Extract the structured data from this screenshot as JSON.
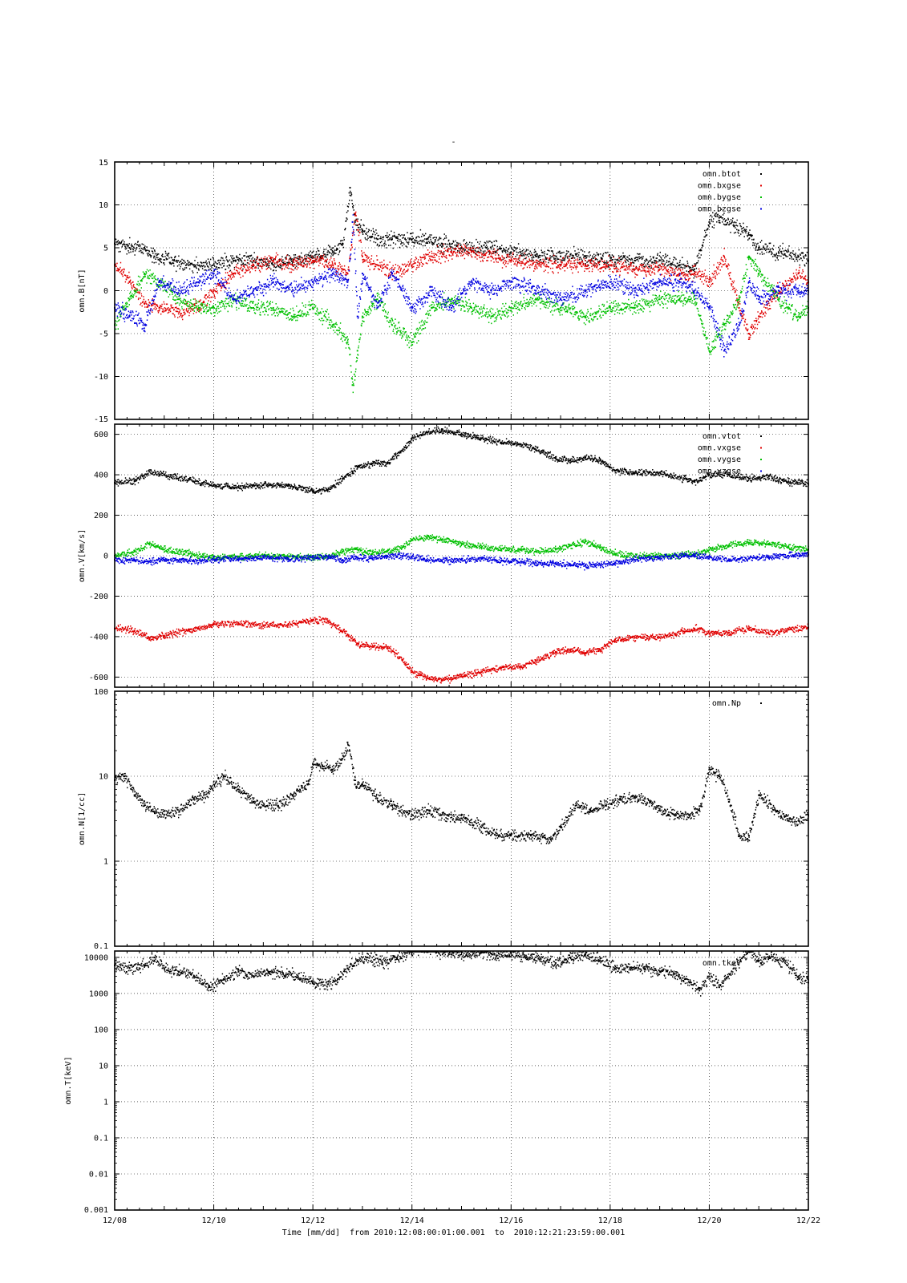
{
  "figure": {
    "title": "-",
    "xlabel": "Time [mm/dd]  from 2010:12:08:00:01:00.001  to  2010:12:21:23:59:00.001",
    "x_tick_labels": [
      "12/08",
      "12/10",
      "12/12",
      "12/14",
      "12/16",
      "12/18",
      "12/20",
      "12/22"
    ]
  },
  "chart_data": [
    {
      "type": "scatter",
      "ylabel": "omn.B[nT]",
      "ylim": [
        -15,
        15
      ],
      "yscale": "linear",
      "y_ticks": [
        -15,
        -10,
        -5,
        0,
        5,
        10,
        15
      ],
      "y_tick_labels": [
        "-15",
        "-10",
        "-5",
        "0",
        "5",
        "10",
        "15"
      ],
      "grid": true,
      "legend": "top-right",
      "x_unit": "day of December 2010",
      "xlim": [
        8,
        22
      ],
      "series": [
        {
          "name": "omn.btot",
          "color": "#000000",
          "x": [
            8.0,
            8.3,
            8.6,
            8.8,
            9.2,
            9.6,
            10.0,
            10.4,
            10.8,
            11.2,
            11.6,
            12.0,
            12.4,
            12.6,
            12.75,
            12.85,
            13.0,
            13.3,
            13.6,
            14.0,
            14.3,
            14.6,
            15.0,
            15.5,
            16.0,
            16.5,
            17.0,
            17.5,
            18.0,
            18.5,
            19.0,
            19.4,
            19.7,
            20.0,
            20.2,
            20.5,
            20.8,
            21.0,
            21.4,
            21.8,
            22.0
          ],
          "y": [
            5.5,
            5,
            5,
            4,
            3.5,
            3,
            3,
            3.5,
            3.5,
            3,
            3.5,
            4,
            4.5,
            5.5,
            12,
            8,
            7,
            6,
            6,
            6,
            6,
            5.5,
            5,
            5,
            4.5,
            4,
            4,
            4,
            3.5,
            3.5,
            3.5,
            3,
            2.5,
            8,
            8.5,
            7.5,
            6.5,
            5,
            4.5,
            4,
            3.5
          ]
        },
        {
          "name": "omn.bxgse",
          "color": "#e00000",
          "x": [
            8.0,
            8.3,
            8.6,
            8.9,
            9.3,
            9.7,
            10.0,
            10.4,
            10.8,
            11.2,
            11.6,
            12.0,
            12.4,
            12.7,
            12.85,
            13.0,
            13.3,
            13.6,
            14.0,
            14.4,
            14.8,
            15.2,
            15.6,
            16.0,
            16.5,
            17.0,
            17.5,
            18.0,
            18.5,
            19.0,
            19.4,
            19.7,
            20.0,
            20.3,
            20.6,
            20.8,
            21.0,
            21.4,
            21.8,
            22.0
          ],
          "y": [
            3,
            1,
            -1.5,
            -2,
            -2.5,
            -2,
            0,
            2,
            3,
            3.5,
            3,
            3.5,
            3,
            2,
            9,
            4,
            3,
            2,
            3,
            4,
            4.5,
            4.5,
            4,
            3.5,
            3,
            3,
            3,
            3,
            2.5,
            2.5,
            2,
            2,
            1,
            4,
            -2,
            -5,
            -3,
            0,
            2,
            1
          ]
        },
        {
          "name": "omn.bygse",
          "color": "#00c000",
          "x": [
            8.0,
            8.3,
            8.6,
            8.9,
            9.3,
            9.7,
            10.0,
            10.4,
            10.8,
            11.2,
            11.6,
            12.0,
            12.4,
            12.7,
            12.8,
            12.9,
            13.0,
            13.3,
            13.6,
            14.0,
            14.4,
            14.8,
            15.2,
            15.6,
            16.0,
            16.5,
            17.0,
            17.5,
            18.0,
            18.5,
            19.0,
            19.4,
            19.7,
            20.0,
            20.3,
            20.6,
            20.8,
            21.0,
            21.4,
            21.8,
            22.0
          ],
          "y": [
            -4,
            -1,
            2,
            1,
            -1,
            -2,
            -2,
            -1,
            -2,
            -2,
            -3,
            -2,
            -4,
            -6,
            -11,
            -7,
            -3,
            -1,
            -4,
            -6,
            -2,
            -1,
            -2,
            -3,
            -2,
            -1,
            -2,
            -3,
            -2,
            -2,
            -1,
            -1,
            -1,
            -7,
            -4,
            -1,
            4,
            2,
            -1,
            -3,
            -2
          ]
        },
        {
          "name": "omn.bzgse",
          "color": "#0000e0",
          "x": [
            8.0,
            8.3,
            8.6,
            8.9,
            9.3,
            9.7,
            10.0,
            10.4,
            10.8,
            11.2,
            11.6,
            12.0,
            12.4,
            12.7,
            12.8,
            12.9,
            13.0,
            13.3,
            13.6,
            14.0,
            14.4,
            14.8,
            15.2,
            15.6,
            16.0,
            16.5,
            17.0,
            17.5,
            18.0,
            18.5,
            19.0,
            19.4,
            19.7,
            20.0,
            20.3,
            20.6,
            20.8,
            21.0,
            21.4,
            21.8,
            22.0
          ],
          "y": [
            -2,
            -3,
            -4,
            1,
            0,
            1,
            2,
            -1,
            0,
            1,
            0,
            1,
            2,
            1,
            8,
            -3,
            2,
            -2,
            2,
            -2,
            0,
            -2,
            1,
            0,
            1,
            0,
            -1,
            0,
            1,
            0,
            1,
            1,
            0,
            -2,
            -7,
            -4,
            1,
            -1,
            0,
            0,
            0
          ]
        }
      ]
    },
    {
      "type": "scatter",
      "ylabel": "omn.V[km/s]",
      "ylim": [
        -650,
        650
      ],
      "yscale": "linear",
      "y_ticks": [
        -600,
        -400,
        -200,
        0,
        200,
        400,
        600
      ],
      "y_tick_labels": [
        "-600",
        "-400",
        "-200",
        "0",
        "200",
        "400",
        "600"
      ],
      "grid": true,
      "legend": "top-right",
      "x_unit": "day of December 2010",
      "xlim": [
        8,
        22
      ],
      "series": [
        {
          "name": "omn.vtot",
          "color": "#000000",
          "x": [
            8.0,
            8.4,
            8.7,
            9.0,
            9.5,
            10.0,
            10.5,
            11.0,
            11.5,
            12.0,
            12.3,
            12.6,
            12.9,
            13.2,
            13.5,
            13.8,
            14.0,
            14.3,
            14.6,
            15.0,
            15.4,
            15.8,
            16.2,
            16.5,
            16.9,
            17.2,
            17.5,
            17.8,
            18.1,
            18.5,
            19.0,
            19.5,
            19.7,
            20.0,
            20.4,
            20.8,
            21.2,
            21.6,
            22.0
          ],
          "y": [
            360,
            370,
            415,
            400,
            375,
            345,
            340,
            350,
            345,
            320,
            325,
            380,
            440,
            455,
            455,
            520,
            580,
            610,
            620,
            600,
            580,
            560,
            550,
            525,
            480,
            470,
            485,
            470,
            420,
            410,
            410,
            380,
            365,
            400,
            400,
            380,
            390,
            365,
            355
          ]
        },
        {
          "name": "omn.vxgse",
          "color": "#e00000",
          "x": [
            8.0,
            8.4,
            8.7,
            9.0,
            9.5,
            10.0,
            10.5,
            11.0,
            11.5,
            12.0,
            12.3,
            12.6,
            12.9,
            13.2,
            13.5,
            13.8,
            14.0,
            14.3,
            14.6,
            15.0,
            15.4,
            15.8,
            16.2,
            16.5,
            16.9,
            17.2,
            17.5,
            17.8,
            18.1,
            18.5,
            19.0,
            19.5,
            19.7,
            20.0,
            20.4,
            20.8,
            21.2,
            21.6,
            22.0
          ],
          "y": [
            -360,
            -370,
            -410,
            -395,
            -370,
            -340,
            -335,
            -345,
            -340,
            -318,
            -322,
            -375,
            -435,
            -450,
            -455,
            -515,
            -575,
            -605,
            -615,
            -595,
            -575,
            -555,
            -545,
            -520,
            -475,
            -465,
            -480,
            -465,
            -415,
            -405,
            -405,
            -375,
            -360,
            -385,
            -380,
            -360,
            -385,
            -365,
            -355
          ]
        },
        {
          "name": "omn.vygse",
          "color": "#00c000",
          "x": [
            8.0,
            8.4,
            8.7,
            9.0,
            9.5,
            10.0,
            10.5,
            11.0,
            11.5,
            12.0,
            12.3,
            12.6,
            12.9,
            13.2,
            13.5,
            13.8,
            14.0,
            14.3,
            14.6,
            15.0,
            15.4,
            15.8,
            16.2,
            16.5,
            16.9,
            17.2,
            17.5,
            17.8,
            18.1,
            18.5,
            19.0,
            19.5,
            19.7,
            20.0,
            20.4,
            20.8,
            21.2,
            21.6,
            22.0
          ],
          "y": [
            0,
            20,
            60,
            30,
            10,
            -10,
            -5,
            0,
            -5,
            -10,
            -5,
            20,
            30,
            10,
            20,
            40,
            80,
            90,
            80,
            60,
            40,
            30,
            30,
            20,
            30,
            50,
            70,
            40,
            10,
            -5,
            0,
            5,
            5,
            30,
            50,
            65,
            60,
            40,
            30
          ]
        },
        {
          "name": "omn.vzgse",
          "color": "#0000e0",
          "x": [
            8.0,
            8.4,
            8.7,
            9.0,
            9.5,
            10.0,
            10.5,
            11.0,
            11.5,
            12.0,
            12.3,
            12.6,
            12.9,
            13.2,
            13.5,
            13.8,
            14.0,
            14.3,
            14.6,
            15.0,
            15.4,
            15.8,
            16.2,
            16.5,
            16.9,
            17.2,
            17.5,
            17.8,
            18.1,
            18.5,
            19.0,
            19.5,
            19.7,
            20.0,
            20.4,
            20.8,
            21.2,
            21.6,
            22.0
          ],
          "y": [
            -20,
            -25,
            -30,
            -20,
            -25,
            -20,
            -15,
            -10,
            -15,
            -10,
            -5,
            -20,
            -10,
            -15,
            0,
            0,
            -5,
            -20,
            -25,
            -20,
            -15,
            -25,
            -30,
            -35,
            -40,
            -45,
            -50,
            -45,
            -35,
            -20,
            -10,
            0,
            0,
            -10,
            -20,
            -15,
            -5,
            0,
            5
          ]
        }
      ]
    },
    {
      "type": "scatter",
      "ylabel": "omn.N[1/cc]",
      "ylim": [
        0.1,
        100
      ],
      "yscale": "log",
      "y_ticks": [
        0.1,
        1,
        10,
        100
      ],
      "y_tick_labels": [
        "0.1",
        "1",
        "10",
        "100"
      ],
      "grid": true,
      "legend": "top-right",
      "x_unit": "day of December 2010",
      "xlim": [
        8,
        22
      ],
      "series": [
        {
          "name": "omn.Np",
          "color": "#000000",
          "x": [
            8.0,
            8.2,
            8.4,
            8.6,
            8.8,
            9.0,
            9.3,
            9.6,
            9.8,
            10.0,
            10.2,
            10.5,
            10.8,
            11.0,
            11.3,
            11.6,
            11.9,
            12.0,
            12.2,
            12.4,
            12.6,
            12.7,
            12.85,
            13.0,
            13.3,
            13.6,
            14.0,
            14.3,
            14.6,
            15.0,
            15.4,
            15.7,
            16.0,
            16.4,
            16.8,
            17.0,
            17.3,
            17.6,
            17.9,
            18.2,
            18.5,
            18.8,
            19.0,
            19.3,
            19.6,
            19.8,
            20.0,
            20.2,
            20.4,
            20.6,
            20.8,
            21.0,
            21.3,
            21.6,
            21.8,
            22.0
          ],
          "y": [
            9,
            10,
            6,
            4.5,
            3.8,
            3.5,
            3.8,
            5.5,
            6,
            8,
            10,
            7,
            5,
            4.5,
            4.5,
            6,
            8,
            14,
            13,
            12,
            16,
            25,
            8,
            8,
            5.5,
            4.5,
            3.5,
            4,
            3.5,
            3.2,
            2.5,
            2,
            2,
            2,
            1.8,
            2.5,
            4.5,
            4,
            4.5,
            5.5,
            5.5,
            5,
            4,
            3.5,
            3.5,
            4,
            12,
            10,
            5,
            2,
            2,
            6,
            4,
            3,
            3,
            3.5
          ]
        }
      ]
    },
    {
      "type": "scatter",
      "ylabel": "omn.T[keV]",
      "ylim": [
        0.001,
        15000
      ],
      "yscale": "log",
      "y_ticks": [
        0.001,
        0.01,
        0.1,
        1,
        10,
        100,
        1000,
        10000
      ],
      "y_tick_labels": [
        "0.001",
        "0.01",
        "0.1",
        "1",
        "10",
        "100",
        "1000",
        "10000"
      ],
      "grid": true,
      "legend": "top-right",
      "x_unit": "day of December 2010",
      "xlim": [
        8,
        22
      ],
      "series": [
        {
          "name": "omn.tkev",
          "color": "#000000",
          "x": [
            8.0,
            8.3,
            8.6,
            8.8,
            9.0,
            9.3,
            9.6,
            9.9,
            10.2,
            10.5,
            10.8,
            11.1,
            11.4,
            11.7,
            12.0,
            12.3,
            12.5,
            12.7,
            12.9,
            13.1,
            13.4,
            13.7,
            14.0,
            14.2,
            14.5,
            14.8,
            15.1,
            15.4,
            15.7,
            16.0,
            16.3,
            16.6,
            16.9,
            17.2,
            17.5,
            17.8,
            18.1,
            18.4,
            18.7,
            19.0,
            19.3,
            19.6,
            19.8,
            20.0,
            20.2,
            20.5,
            20.8,
            21.0,
            21.2,
            21.5,
            21.8,
            22.0
          ],
          "y": [
            6000,
            5000,
            6000,
            10000,
            5000,
            4000,
            3000,
            1500,
            2500,
            4000,
            3000,
            4000,
            3500,
            3000,
            2000,
            1800,
            2500,
            5000,
            8000,
            10000,
            7000,
            9000,
            15000,
            20000,
            15000,
            12000,
            12000,
            14000,
            11000,
            13000,
            10000,
            9000,
            7000,
            10000,
            12000,
            8000,
            5000,
            5000,
            5000,
            4000,
            3500,
            2000,
            1200,
            3000,
            1500,
            5000,
            15000,
            8000,
            10000,
            8000,
            3000,
            2000
          ]
        }
      ]
    }
  ]
}
